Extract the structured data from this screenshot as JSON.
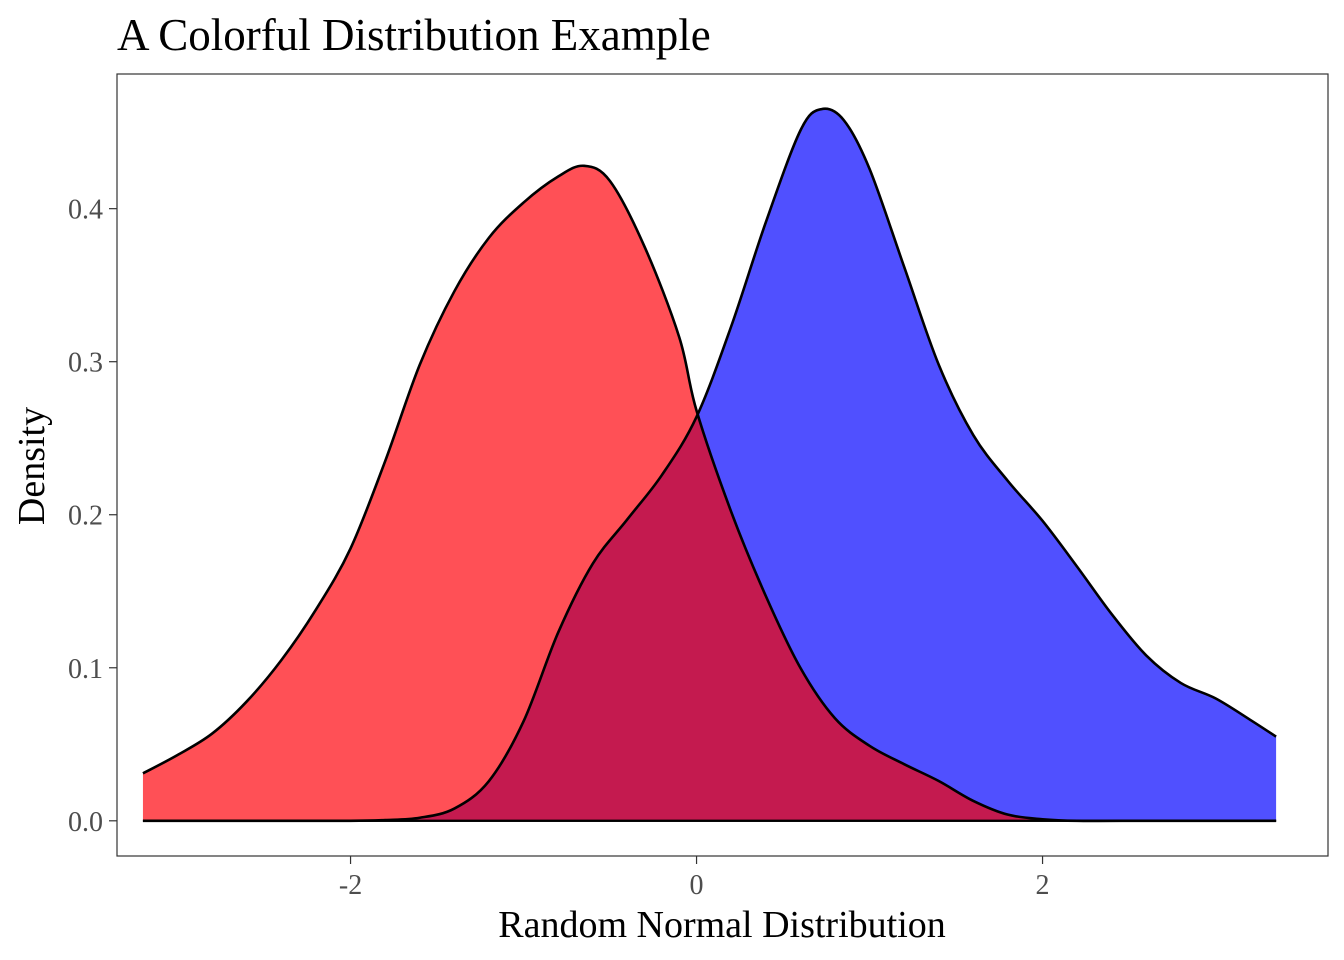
{
  "chart_data": {
    "type": "area",
    "title": "A Colorful Distribution Example",
    "xlabel": "Random Normal Distribution",
    "ylabel": "Density",
    "xlim": [
      -3.35,
      3.65
    ],
    "ylim": [
      -0.023,
      0.488
    ],
    "x_ticks": [
      -2,
      0,
      2
    ],
    "x_tick_labels": [
      "-2",
      "0",
      "2"
    ],
    "y_ticks": [
      0.0,
      0.1,
      0.2,
      0.3,
      0.4
    ],
    "y_tick_labels": [
      "0.0",
      "0.1",
      "0.2",
      "0.3",
      "0.4"
    ],
    "grid": false,
    "legend": "none",
    "overlap_color": "#c41a4f",
    "series": [
      {
        "fill": "#ff5056",
        "stroke": "#000000",
        "values": [
          [
            -3.2,
            0.031
          ],
          [
            -3.0,
            0.043
          ],
          [
            -2.8,
            0.057
          ],
          [
            -2.6,
            0.078
          ],
          [
            -2.4,
            0.105
          ],
          [
            -2.2,
            0.138
          ],
          [
            -2.0,
            0.178
          ],
          [
            -1.8,
            0.235
          ],
          [
            -1.6,
            0.298
          ],
          [
            -1.4,
            0.346
          ],
          [
            -1.2,
            0.381
          ],
          [
            -1.0,
            0.404
          ],
          [
            -0.8,
            0.421
          ],
          [
            -0.65,
            0.428
          ],
          [
            -0.5,
            0.418
          ],
          [
            -0.3,
            0.375
          ],
          [
            -0.1,
            0.316
          ],
          [
            0.0,
            0.268
          ],
          [
            0.2,
            0.202
          ],
          [
            0.4,
            0.147
          ],
          [
            0.6,
            0.1
          ],
          [
            0.8,
            0.067
          ],
          [
            1.0,
            0.049
          ],
          [
            1.2,
            0.037
          ],
          [
            1.4,
            0.026
          ],
          [
            1.6,
            0.013
          ],
          [
            1.8,
            0.004
          ],
          [
            2.0,
            0.001
          ],
          [
            2.2,
            0.0
          ],
          [
            2.6,
            0.0
          ],
          [
            3.0,
            0.0
          ],
          [
            3.35,
            0.0
          ]
        ]
      },
      {
        "fill": "#5050ff",
        "stroke": "#000000",
        "values": [
          [
            -3.2,
            0.0
          ],
          [
            -2.5,
            0.0
          ],
          [
            -2.0,
            0.0
          ],
          [
            -1.8,
            0.0005
          ],
          [
            -1.6,
            0.002
          ],
          [
            -1.4,
            0.008
          ],
          [
            -1.2,
            0.026
          ],
          [
            -1.0,
            0.065
          ],
          [
            -0.8,
            0.123
          ],
          [
            -0.6,
            0.168
          ],
          [
            -0.4,
            0.197
          ],
          [
            -0.2,
            0.226
          ],
          [
            0.0,
            0.264
          ],
          [
            0.2,
            0.323
          ],
          [
            0.4,
            0.391
          ],
          [
            0.6,
            0.451
          ],
          [
            0.72,
            0.465
          ],
          [
            0.85,
            0.458
          ],
          [
            1.0,
            0.426
          ],
          [
            1.2,
            0.362
          ],
          [
            1.4,
            0.298
          ],
          [
            1.6,
            0.252
          ],
          [
            1.8,
            0.222
          ],
          [
            2.0,
            0.196
          ],
          [
            2.2,
            0.166
          ],
          [
            2.4,
            0.135
          ],
          [
            2.6,
            0.108
          ],
          [
            2.8,
            0.09
          ],
          [
            3.0,
            0.08
          ],
          [
            3.2,
            0.066
          ],
          [
            3.35,
            0.055
          ]
        ]
      }
    ]
  }
}
